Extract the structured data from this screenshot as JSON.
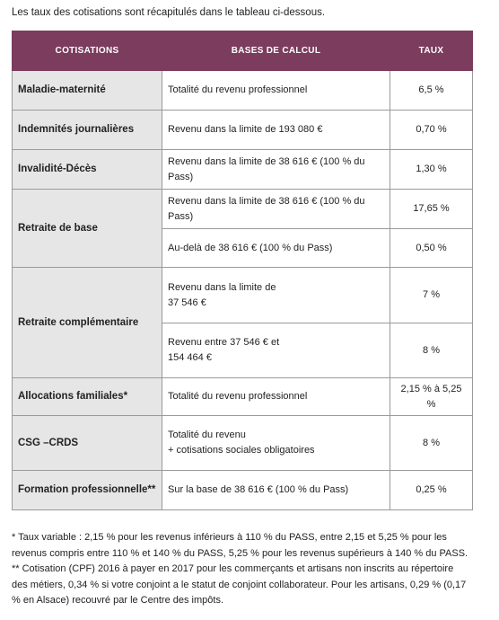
{
  "intro": "Les taux des cotisations sont récapitulés dans le tableau ci-dessous.",
  "table": {
    "header": [
      "COTISATIONS",
      "BASES DE CALCUL",
      "TAUX"
    ],
    "rows": [
      {
        "label": "Maladie-maternité",
        "lines": [
          {
            "base": "Totalité du revenu professionnel",
            "taux": "6,5 %"
          }
        ]
      },
      {
        "label": "Indemnités journalières",
        "lines": [
          {
            "base": "Revenu dans la limite de 193 080 €",
            "taux": "0,70 %"
          }
        ]
      },
      {
        "label": "Invalidité-Décès",
        "lines": [
          {
            "base": "Revenu dans la limite de 38 616 € (100 % du Pass)",
            "taux": "1,30 %"
          }
        ]
      },
      {
        "label": "Retraite de base",
        "lines": [
          {
            "base": "Revenu dans la limite de 38 616 € (100 % du Pass)",
            "taux": "17,65 %"
          },
          {
            "base": "Au-delà de 38 616 € (100 % du Pass)",
            "taux": "0,50 %"
          }
        ]
      },
      {
        "label": "Retraite complémentaire",
        "lines": [
          {
            "base": "Revenu dans la limite de\n37 546 €",
            "taux": "7 %"
          },
          {
            "base": "Revenu entre 37 546 € et\n154 464 €",
            "taux": "8 %"
          }
        ]
      },
      {
        "label": "Allocations familiales*",
        "lines": [
          {
            "base": "Totalité du revenu professionnel",
            "taux": "2,15 % à 5,25 %"
          }
        ]
      },
      {
        "label": "CSG –CRDS",
        "lines": [
          {
            "base": "Totalité du revenu\n+ cotisations sociales obligatoires",
            "taux": "8 %"
          }
        ]
      },
      {
        "label": "Formation professionnelle**",
        "lines": [
          {
            "base": "Sur la base de 38 616 € (100 % du Pass)",
            "taux": "0,25 %"
          }
        ]
      }
    ]
  },
  "footnotes": [
    "* Taux variable : 2,15 % pour les revenus inférieurs à 110 % du PASS, entre 2,15 et 5,25 % pour les revenus compris entre 110 % et 140 % du PASS, 5,25 % pour les revenus supérieurs à 140 % du PASS.",
    "** Cotisation (CPF) 2016 à payer en 2017 pour les commerçants et artisans non inscrits au répertoire des métiers, 0,34 % si votre conjoint a le statut de conjoint collaborateur. Pour les artisans, 0,29 % (0,17 % en Alsace) recouvré par le Centre des impôts."
  ]
}
